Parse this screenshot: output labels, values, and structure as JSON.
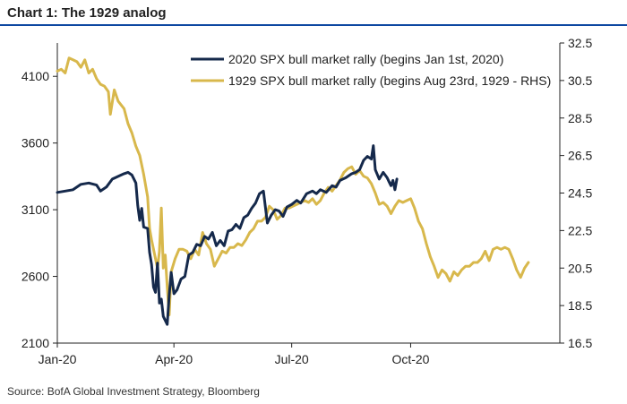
{
  "title": "Chart 1: The 1929 analog",
  "source": "Source:  BofA Global Investment Strategy, Bloomberg",
  "chart_data": {
    "type": "line",
    "x_ticks": [
      "Jan-20",
      "Apr-20",
      "Jul-20",
      "Oct-20"
    ],
    "x_tick_positions": [
      0,
      2.97,
      5.97,
      9.0
    ],
    "x_range": [
      0,
      12.8
    ],
    "ylim_left": [
      2100,
      4350
    ],
    "ylim_right": [
      16.5,
      32.5
    ],
    "yticks_left": [
      "2100",
      "2600",
      "3100",
      "3600",
      "4100"
    ],
    "yticks_right": [
      "16.5",
      "18.5",
      "20.5",
      "22.5",
      "24.5",
      "26.5",
      "28.5",
      "30.5",
      "32.5"
    ],
    "legend_position": "top-center",
    "series": [
      {
        "name": "2020 SPX bull market rally (begins Jan 1st, 2020)",
        "color": "#15294b",
        "axis": "left",
        "points": [
          [
            0.0,
            3230
          ],
          [
            0.2,
            3240
          ],
          [
            0.4,
            3250
          ],
          [
            0.6,
            3290
          ],
          [
            0.8,
            3300
          ],
          [
            1.0,
            3285
          ],
          [
            1.1,
            3240
          ],
          [
            1.25,
            3270
          ],
          [
            1.4,
            3330
          ],
          [
            1.55,
            3350
          ],
          [
            1.7,
            3370
          ],
          [
            1.8,
            3380
          ],
          [
            1.9,
            3360
          ],
          [
            2.0,
            3300
          ],
          [
            2.05,
            3130
          ],
          [
            2.1,
            3020
          ],
          [
            2.15,
            3110
          ],
          [
            2.2,
            2970
          ],
          [
            2.3,
            2960
          ],
          [
            2.35,
            2780
          ],
          [
            2.4,
            2690
          ],
          [
            2.45,
            2520
          ],
          [
            2.5,
            2480
          ],
          [
            2.55,
            2700
          ],
          [
            2.6,
            2400
          ],
          [
            2.65,
            2430
          ],
          [
            2.7,
            2300
          ],
          [
            2.75,
            2270
          ],
          [
            2.8,
            2240
          ],
          [
            2.85,
            2460
          ],
          [
            2.9,
            2630
          ],
          [
            2.97,
            2470
          ],
          [
            3.05,
            2500
          ],
          [
            3.15,
            2580
          ],
          [
            3.25,
            2600
          ],
          [
            3.35,
            2760
          ],
          [
            3.45,
            2780
          ],
          [
            3.55,
            2840
          ],
          [
            3.65,
            2830
          ],
          [
            3.75,
            2900
          ],
          [
            3.85,
            2880
          ],
          [
            3.95,
            2930
          ],
          [
            4.05,
            2830
          ],
          [
            4.15,
            2870
          ],
          [
            4.25,
            2830
          ],
          [
            4.35,
            2940
          ],
          [
            4.45,
            2950
          ],
          [
            4.55,
            2990
          ],
          [
            4.65,
            2960
          ],
          [
            4.75,
            3040
          ],
          [
            4.85,
            3060
          ],
          [
            4.95,
            3110
          ],
          [
            5.05,
            3150
          ],
          [
            5.15,
            3220
          ],
          [
            5.25,
            3240
          ],
          [
            5.35,
            3000
          ],
          [
            5.45,
            3060
          ],
          [
            5.55,
            3100
          ],
          [
            5.65,
            3090
          ],
          [
            5.75,
            3050
          ],
          [
            5.85,
            3120
          ],
          [
            5.97,
            3140
          ],
          [
            6.1,
            3170
          ],
          [
            6.2,
            3150
          ],
          [
            6.35,
            3220
          ],
          [
            6.5,
            3240
          ],
          [
            6.6,
            3220
          ],
          [
            6.7,
            3250
          ],
          [
            6.85,
            3230
          ],
          [
            7.0,
            3280
          ],
          [
            7.1,
            3270
          ],
          [
            7.2,
            3320
          ],
          [
            7.35,
            3340
          ],
          [
            7.5,
            3370
          ],
          [
            7.6,
            3380
          ],
          [
            7.7,
            3400
          ],
          [
            7.8,
            3470
          ],
          [
            7.9,
            3500
          ],
          [
            8.0,
            3480
          ],
          [
            8.05,
            3580
          ],
          [
            8.1,
            3400
          ],
          [
            8.2,
            3330
          ],
          [
            8.3,
            3380
          ],
          [
            8.4,
            3340
          ],
          [
            8.45,
            3310
          ],
          [
            8.5,
            3280
          ],
          [
            8.55,
            3320
          ],
          [
            8.6,
            3250
          ],
          [
            8.65,
            3330
          ]
        ]
      },
      {
        "name": "1929 SPX bull market rally (begins Aug 23rd, 1929 - RHS)",
        "color": "#d8b84c",
        "axis": "right",
        "points": [
          [
            0.0,
            31.0
          ],
          [
            0.1,
            31.1
          ],
          [
            0.2,
            30.9
          ],
          [
            0.3,
            31.7
          ],
          [
            0.4,
            31.6
          ],
          [
            0.5,
            31.5
          ],
          [
            0.6,
            31.2
          ],
          [
            0.7,
            31.6
          ],
          [
            0.8,
            30.9
          ],
          [
            0.9,
            31.1
          ],
          [
            1.0,
            30.6
          ],
          [
            1.1,
            30.3
          ],
          [
            1.2,
            30.2
          ],
          [
            1.3,
            29.9
          ],
          [
            1.35,
            28.7
          ],
          [
            1.45,
            30.0
          ],
          [
            1.55,
            29.4
          ],
          [
            1.7,
            29.0
          ],
          [
            1.8,
            28.2
          ],
          [
            1.9,
            27.7
          ],
          [
            2.0,
            27.0
          ],
          [
            2.1,
            26.5
          ],
          [
            2.2,
            25.5
          ],
          [
            2.3,
            24.3
          ],
          [
            2.35,
            22.6
          ],
          [
            2.4,
            22.0
          ],
          [
            2.5,
            21.0
          ],
          [
            2.55,
            20.5
          ],
          [
            2.6,
            21.4
          ],
          [
            2.65,
            23.7
          ],
          [
            2.7,
            20.5
          ],
          [
            2.75,
            21.2
          ],
          [
            2.8,
            19.5
          ],
          [
            2.85,
            18.0
          ],
          [
            2.9,
            20.3
          ],
          [
            3.0,
            21.0
          ],
          [
            3.1,
            21.5
          ],
          [
            3.2,
            21.5
          ],
          [
            3.3,
            21.4
          ],
          [
            3.4,
            21.0
          ],
          [
            3.5,
            21.5
          ],
          [
            3.6,
            21.2
          ],
          [
            3.7,
            22.4
          ],
          [
            3.8,
            21.8
          ],
          [
            3.9,
            21.5
          ],
          [
            4.0,
            20.6
          ],
          [
            4.1,
            21.0
          ],
          [
            4.2,
            21.4
          ],
          [
            4.3,
            21.3
          ],
          [
            4.4,
            21.6
          ],
          [
            4.5,
            21.6
          ],
          [
            4.6,
            21.8
          ],
          [
            4.7,
            21.7
          ],
          [
            4.8,
            22.0
          ],
          [
            4.9,
            22.4
          ],
          [
            5.0,
            22.6
          ],
          [
            5.1,
            23.0
          ],
          [
            5.2,
            23.0
          ],
          [
            5.3,
            23.2
          ],
          [
            5.4,
            23.8
          ],
          [
            5.5,
            23.6
          ],
          [
            5.6,
            23.1
          ],
          [
            5.7,
            23.3
          ],
          [
            5.8,
            23.7
          ],
          [
            5.9,
            23.7
          ],
          [
            6.0,
            23.8
          ],
          [
            6.1,
            23.9
          ],
          [
            6.2,
            24.0
          ],
          [
            6.3,
            24.1
          ],
          [
            6.4,
            24.0
          ],
          [
            6.5,
            24.2
          ],
          [
            6.6,
            23.9
          ],
          [
            6.7,
            24.1
          ],
          [
            6.8,
            24.5
          ],
          [
            6.9,
            24.8
          ],
          [
            7.0,
            24.6
          ],
          [
            7.1,
            24.9
          ],
          [
            7.2,
            25.2
          ],
          [
            7.3,
            25.6
          ],
          [
            7.4,
            25.8
          ],
          [
            7.5,
            25.9
          ],
          [
            7.6,
            25.5
          ],
          [
            7.7,
            25.7
          ],
          [
            7.8,
            25.4
          ],
          [
            7.9,
            25.3
          ],
          [
            8.0,
            25.0
          ],
          [
            8.1,
            24.5
          ],
          [
            8.2,
            23.9
          ],
          [
            8.3,
            24.0
          ],
          [
            8.4,
            23.8
          ],
          [
            8.5,
            23.4
          ],
          [
            8.6,
            23.8
          ],
          [
            8.7,
            24.1
          ],
          [
            8.8,
            24.0
          ],
          [
            8.9,
            24.1
          ],
          [
            9.0,
            24.2
          ],
          [
            9.1,
            23.7
          ],
          [
            9.2,
            23.0
          ],
          [
            9.3,
            22.6
          ],
          [
            9.4,
            21.8
          ],
          [
            9.5,
            21.1
          ],
          [
            9.6,
            20.6
          ],
          [
            9.7,
            20.0
          ],
          [
            9.8,
            20.4
          ],
          [
            9.9,
            20.2
          ],
          [
            10.0,
            19.8
          ],
          [
            10.1,
            20.3
          ],
          [
            10.2,
            20.1
          ],
          [
            10.3,
            20.4
          ],
          [
            10.4,
            20.6
          ],
          [
            10.5,
            20.6
          ],
          [
            10.6,
            20.8
          ],
          [
            10.7,
            20.8
          ],
          [
            10.8,
            21.0
          ],
          [
            10.9,
            21.4
          ],
          [
            11.0,
            20.9
          ],
          [
            11.1,
            21.5
          ],
          [
            11.2,
            21.6
          ],
          [
            11.3,
            21.5
          ],
          [
            11.4,
            21.6
          ],
          [
            11.5,
            21.5
          ],
          [
            11.6,
            21.0
          ],
          [
            11.7,
            20.4
          ],
          [
            11.8,
            20.0
          ],
          [
            11.9,
            20.5
          ],
          [
            12.0,
            20.8
          ]
        ]
      }
    ]
  }
}
